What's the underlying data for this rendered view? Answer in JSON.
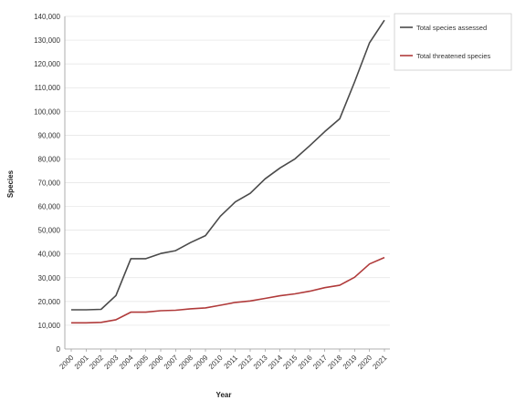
{
  "chart_data": {
    "type": "line",
    "title": "",
    "xlabel": "Year",
    "ylabel": "Species",
    "categories": [
      "2000",
      "2001",
      "2002",
      "2003",
      "2004",
      "2005",
      "2006",
      "2007",
      "2008",
      "2009",
      "2010",
      "2011",
      "2012",
      "2013",
      "2014",
      "2015",
      "2016",
      "2017",
      "2018",
      "2019",
      "2020",
      "2021"
    ],
    "ylim": [
      0,
      140000
    ],
    "yticks": [
      0,
      10000,
      20000,
      30000,
      40000,
      50000,
      60000,
      70000,
      80000,
      90000,
      100000,
      110000,
      120000,
      130000,
      140000
    ],
    "ytick_labels": [
      "0",
      "10,000",
      "20,000",
      "30,000",
      "40,000",
      "50,000",
      "60,000",
      "70,000",
      "80,000",
      "90,000",
      "100,000",
      "110,000",
      "120,000",
      "130,000",
      "140,000"
    ],
    "grid": "horizontal",
    "legend_position": "top-right",
    "series": [
      {
        "name": "Total species assessed",
        "color": "#4a4a4a",
        "values": [
          16500,
          16500,
          16700,
          22500,
          38000,
          38000,
          40200,
          41400,
          44800,
          47700,
          55900,
          61900,
          65500,
          71600,
          76200,
          80000,
          85600,
          91500,
          96900,
          112400,
          128900,
          138400
        ]
      },
      {
        "name": "Total threatened species",
        "color": "#b03a3a",
        "values": [
          11000,
          11000,
          11200,
          12300,
          15500,
          15500,
          16100,
          16300,
          16900,
          17300,
          18400,
          19600,
          20200,
          21300,
          22400,
          23200,
          24300,
          25800,
          26800,
          30200,
          35800,
          38500
        ]
      }
    ]
  }
}
